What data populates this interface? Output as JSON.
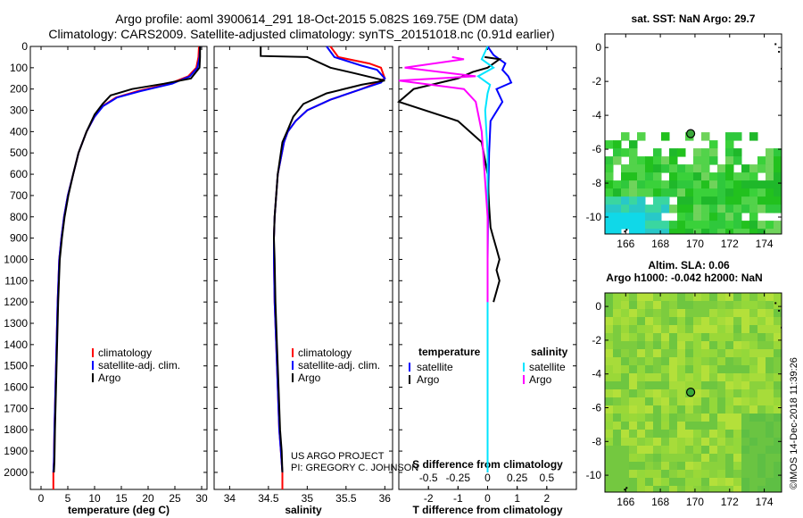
{
  "title_line1": "Argo profile: aoml 3900614_291 18-Oct-2015 5.082S 169.75E (DM data)",
  "title_line2": "Climatology: CARS2009. Satellite-adjusted climatology: synTS_20151018.nc (0.91d earlier)",
  "credit": "©IMOS 14-Dec-2018 11:39:26",
  "project_line1": "US ARGO PROJECT",
  "project_line2": "PI: GREGORY C. JOHNSON",
  "colors": {
    "climatology": "#ff0000",
    "satellite": "#0000ff",
    "argo": "#000000",
    "sal_satellite": "#00e5ff",
    "sal_argo": "#ff00ff",
    "map_land": "#000000"
  },
  "chart_data": [
    {
      "type": "line",
      "id": "temperature",
      "xlabel": "temperature (deg C)",
      "ylabel": "",
      "xlim": [
        -2,
        31
      ],
      "ylim": [
        2080,
        0
      ],
      "xticks": [
        0,
        5,
        10,
        15,
        20,
        25,
        30
      ],
      "yticks": [
        0,
        100,
        200,
        300,
        400,
        500,
        600,
        700,
        800,
        900,
        1000,
        1100,
        1200,
        1300,
        1400,
        1500,
        1600,
        1700,
        1800,
        1900,
        2000
      ],
      "legend": {
        "location": "center-right",
        "entries": [
          "climatology",
          "satellite-adj. clim.",
          "Argo"
        ]
      },
      "series": [
        {
          "name": "climatology",
          "color": "#ff0000",
          "x": [
            29.5,
            29.4,
            29.0,
            27.5,
            24.0,
            18.0,
            14.0,
            11.5,
            10.0,
            8.5,
            7.0,
            6.0,
            5.0,
            4.3,
            3.8,
            3.4,
            3.1,
            2.9,
            2.7,
            2.5,
            2.4,
            2.3,
            2.3
          ],
          "y": [
            0,
            50,
            100,
            140,
            175,
            210,
            240,
            280,
            330,
            400,
            500,
            600,
            700,
            800,
            900,
            1000,
            1200,
            1400,
            1600,
            1800,
            1950,
            2000,
            2080
          ]
        },
        {
          "name": "satellite-adj. clim.",
          "color": "#0000ff",
          "x": [
            29.7,
            29.6,
            29.2,
            27.8,
            24.5,
            18.5,
            14.2,
            11.6,
            10.0,
            8.5,
            7.0,
            6.0,
            5.0,
            4.3,
            3.8,
            3.4,
            3.1,
            2.9,
            2.7,
            2.5,
            2.4,
            2.3
          ],
          "y": [
            0,
            50,
            100,
            140,
            175,
            210,
            240,
            280,
            330,
            400,
            500,
            600,
            700,
            800,
            900,
            1000,
            1200,
            1400,
            1600,
            1800,
            1950,
            2000
          ]
        },
        {
          "name": "Argo",
          "color": "#000000",
          "x": [
            29.7,
            29.7,
            29.6,
            28.0,
            23.0,
            17.0,
            13.0,
            11.5,
            10.0,
            8.5,
            7.0,
            6.0,
            5.1,
            4.4,
            3.9,
            3.5,
            3.2,
            3.0,
            2.8,
            2.6,
            2.5,
            2.4
          ],
          "y": [
            0,
            50,
            100,
            150,
            175,
            200,
            230,
            270,
            320,
            400,
            500,
            600,
            700,
            800,
            900,
            1000,
            1200,
            1400,
            1600,
            1800,
            1950,
            2000
          ]
        }
      ]
    },
    {
      "type": "line",
      "id": "salinity",
      "xlabel": "salinity",
      "ylabel": "",
      "xlim": [
        33.8,
        36.1
      ],
      "ylim": [
        2080,
        0
      ],
      "xticks": [
        34,
        34.5,
        35,
        35.5,
        36
      ],
      "legend": {
        "location": "center-right",
        "entries": [
          "climatology",
          "satellite-adj. clim.",
          "Argo"
        ]
      },
      "series": [
        {
          "name": "climatology",
          "color": "#ff0000",
          "x": [
            35.3,
            35.4,
            35.8,
            35.95,
            36.0,
            35.9,
            35.7,
            35.3,
            35.0,
            34.85,
            34.75,
            34.7,
            34.62,
            34.58,
            34.57,
            34.57,
            34.58,
            34.6,
            34.62,
            34.64,
            34.66,
            34.68,
            34.68
          ],
          "y": [
            0,
            50,
            80,
            100,
            150,
            170,
            200,
            250,
            300,
            350,
            400,
            450,
            600,
            800,
            900,
            1000,
            1200,
            1400,
            1600,
            1800,
            1900,
            2000,
            2080
          ]
        },
        {
          "name": "satellite-adj. clim.",
          "color": "#0000ff",
          "x": [
            35.25,
            35.35,
            35.7,
            35.9,
            36.0,
            35.95,
            35.7,
            35.3,
            35.0,
            34.85,
            34.75,
            34.7,
            34.62,
            34.58,
            34.57,
            34.57,
            34.58,
            34.6,
            34.62,
            34.64,
            34.66,
            34.68
          ],
          "y": [
            0,
            50,
            90,
            110,
            150,
            170,
            200,
            250,
            300,
            350,
            400,
            450,
            600,
            800,
            900,
            1000,
            1200,
            1400,
            1600,
            1800,
            1900,
            2000
          ]
        },
        {
          "name": "Argo",
          "color": "#000000",
          "x": [
            34.4,
            34.4,
            35.0,
            35.3,
            35.6,
            36.0,
            35.7,
            35.25,
            34.95,
            34.82,
            34.74,
            34.68,
            34.62,
            34.58,
            34.57,
            34.58,
            34.59,
            34.61,
            34.63,
            34.65,
            34.67,
            34.68
          ],
          "y": [
            0,
            45,
            50,
            100,
            125,
            160,
            180,
            220,
            270,
            330,
            400,
            450,
            600,
            800,
            900,
            1000,
            1200,
            1400,
            1600,
            1800,
            1900,
            2000
          ]
        }
      ]
    },
    {
      "type": "line",
      "id": "difference",
      "xlabel": "T difference from climatology",
      "x2label": "S difference from climatology",
      "ylabel": "",
      "xlim": [
        -3,
        3
      ],
      "x2lim": [
        -0.75,
        0.75
      ],
      "ylim": [
        2080,
        0
      ],
      "xticks": [
        -2,
        -1,
        0,
        1,
        2
      ],
      "x2ticks": [
        -0.5,
        -0.25,
        0,
        0.25,
        0.5
      ],
      "legend_left": {
        "title": "temperature",
        "entries": [
          "satellite",
          "Argo"
        ]
      },
      "legend_right": {
        "title": "salinity",
        "entries": [
          "satellite",
          "Argo"
        ]
      },
      "series": [
        {
          "name": "satellite",
          "group": "temperature",
          "color": "#0000ff",
          "axis": "x",
          "x": [
            0.0,
            0.2,
            0.6,
            0.5,
            0.7,
            0.8,
            0.3,
            0.5,
            0.1,
            0.05,
            0.02,
            0.0,
            0.0,
            0.0
          ],
          "y": [
            0,
            40,
            80,
            110,
            140,
            170,
            200,
            260,
            350,
            500,
            700,
            1000,
            1500,
            2000
          ]
        },
        {
          "name": "Argo",
          "group": "temperature",
          "color": "#000000",
          "axis": "x",
          "x": [
            -0.1,
            0.4,
            0.0,
            -0.5,
            -1.0,
            -2.5,
            -3.0,
            -1.0,
            -0.2,
            0.0,
            0.05,
            0.1,
            0.2,
            0.3,
            0.4,
            0.3,
            0.4,
            0.3,
            0.2
          ],
          "y": [
            50,
            60,
            100,
            120,
            150,
            200,
            260,
            350,
            450,
            600,
            750,
            850,
            900,
            950,
            1000,
            1050,
            1100,
            1150,
            1200
          ]
        },
        {
          "name": "satellite",
          "group": "salinity",
          "color": "#00e5ff",
          "axis": "x2",
          "x": [
            0.0,
            -0.05,
            0.05,
            -0.08,
            0.02,
            0.0,
            -0.02,
            0.0,
            0.0,
            0.0,
            0.0
          ],
          "y": [
            0,
            60,
            100,
            140,
            180,
            220,
            300,
            500,
            1000,
            1500,
            2000
          ]
        },
        {
          "name": "Argo",
          "group": "salinity",
          "color": "#ff00ff",
          "axis": "x2",
          "x": [
            -0.3,
            -0.2,
            -0.7,
            -0.1,
            -0.75,
            -0.2,
            -0.1,
            -0.05,
            0.0,
            0.0
          ],
          "y": [
            50,
            60,
            100,
            140,
            160,
            200,
            260,
            400,
            800,
            1200
          ]
        }
      ]
    },
    {
      "type": "heatmap",
      "id": "sst-map",
      "title": "sat. SST: NaN Argo: 29.7",
      "xlim": [
        164.8,
        175
      ],
      "ylim": [
        -11,
        0.8
      ],
      "xticks": [
        166,
        168,
        170,
        172,
        174
      ],
      "yticks": [
        0,
        -2,
        -4,
        -6,
        -8,
        -10
      ],
      "argo_position": [
        169.75,
        -5.082
      ]
    },
    {
      "type": "heatmap",
      "id": "sla-map",
      "title_line1": "Altim. SLA: 0.06",
      "title_line2": "Argo h1000: -0.042 h2000: NaN",
      "xlim": [
        164.8,
        175
      ],
      "ylim": [
        -11,
        0.8
      ],
      "xticks": [
        166,
        168,
        170,
        172,
        174
      ],
      "yticks": [
        0,
        -2,
        -4,
        -6,
        -8,
        -10
      ],
      "argo_position": [
        169.75,
        -5.082
      ]
    }
  ]
}
